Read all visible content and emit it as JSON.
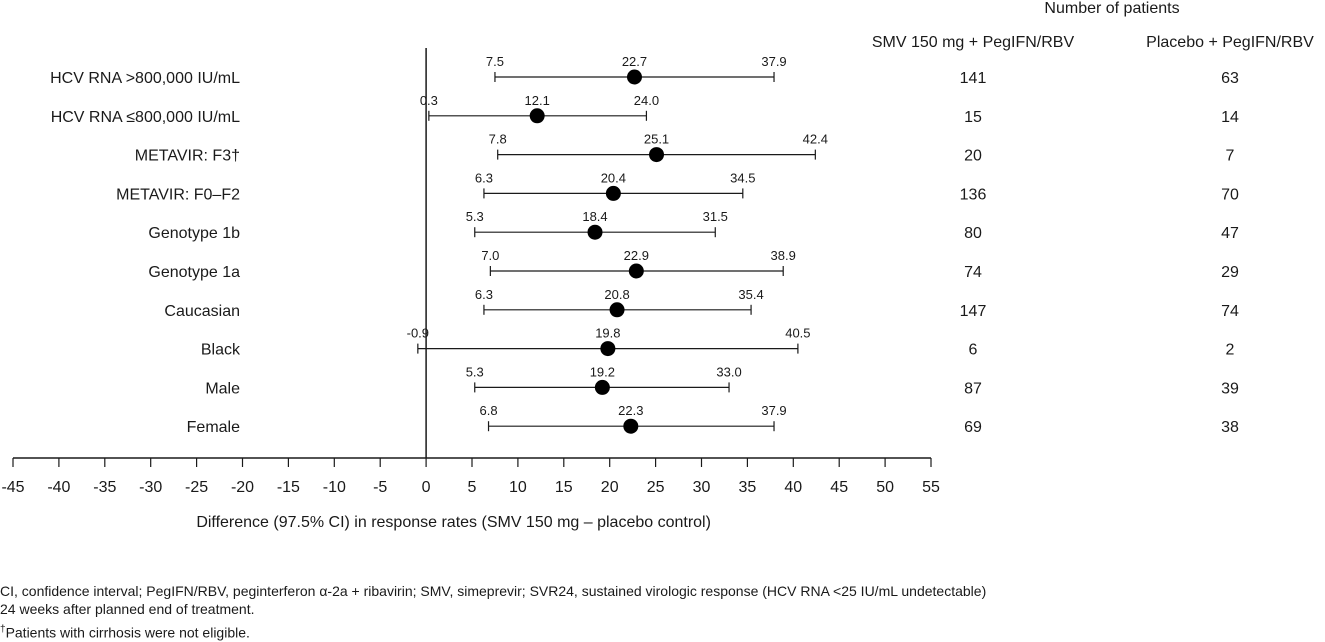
{
  "chart_data": {
    "type": "forest",
    "xlabel": "Difference (97.5% CI) in response rates (SMV 150 mg – placebo control)",
    "xlim": [
      -45,
      55
    ],
    "xticks": [
      "-45",
      "-40",
      "-35",
      "-30",
      "-25",
      "-20",
      "-15",
      "-10",
      "-5",
      "0",
      "5",
      "10",
      "15",
      "20",
      "25",
      "30",
      "35",
      "40",
      "45",
      "50",
      "55"
    ],
    "reference_line": 0,
    "columns_header": "Number of patients",
    "column_labels": [
      "SMV 150 mg + PegIFN/RBV",
      "Placebo + PegIFN/RBV"
    ],
    "rows": [
      {
        "label": "HCV RNA >800,000 IU/mL",
        "estimate": 22.7,
        "lower": 7.5,
        "upper": 37.9,
        "estimate_text": "22.7",
        "lower_text": "7.5",
        "upper_text": "37.9",
        "n_smv": "141",
        "n_placebo": "63"
      },
      {
        "label": "HCV RNA ≤800,000 IU/mL",
        "estimate": 12.1,
        "lower": 0.3,
        "upper": 24.0,
        "estimate_text": "12.1",
        "lower_text": "0.3",
        "upper_text": "24.0",
        "n_smv": "15",
        "n_placebo": "14"
      },
      {
        "label": "METAVIR: F3†",
        "estimate": 25.1,
        "lower": 7.8,
        "upper": 42.4,
        "estimate_text": "25.1",
        "lower_text": "7.8",
        "upper_text": "42.4",
        "n_smv": "20",
        "n_placebo": "7"
      },
      {
        "label": "METAVIR: F0–F2",
        "estimate": 20.4,
        "lower": 6.3,
        "upper": 34.5,
        "estimate_text": "20.4",
        "lower_text": "6.3",
        "upper_text": "34.5",
        "n_smv": "136",
        "n_placebo": "70"
      },
      {
        "label": "Genotype 1b",
        "estimate": 18.4,
        "lower": 5.3,
        "upper": 31.5,
        "estimate_text": "18.4",
        "lower_text": "5.3",
        "upper_text": "31.5",
        "n_smv": "80",
        "n_placebo": "47"
      },
      {
        "label": "Genotype 1a",
        "estimate": 22.9,
        "lower": 7.0,
        "upper": 38.9,
        "estimate_text": "22.9",
        "lower_text": "7.0",
        "upper_text": "38.9",
        "n_smv": "74",
        "n_placebo": "29"
      },
      {
        "label": "Caucasian",
        "estimate": 20.8,
        "lower": 6.3,
        "upper": 35.4,
        "estimate_text": "20.8",
        "lower_text": "6.3",
        "upper_text": "35.4",
        "n_smv": "147",
        "n_placebo": "74"
      },
      {
        "label": "Black",
        "estimate": 19.8,
        "lower": -0.9,
        "upper": 40.5,
        "estimate_text": "19.8",
        "lower_text": "-0.9",
        "upper_text": "40.5",
        "n_smv": "6",
        "n_placebo": "2"
      },
      {
        "label": "Male",
        "estimate": 19.2,
        "lower": 5.3,
        "upper": 33.0,
        "estimate_text": "19.2",
        "lower_text": "5.3",
        "upper_text": "33.0",
        "n_smv": "87",
        "n_placebo": "39"
      },
      {
        "label": "Female",
        "estimate": 22.3,
        "lower": 6.8,
        "upper": 37.9,
        "estimate_text": "22.3",
        "lower_text": "6.8",
        "upper_text": "37.9",
        "n_smv": "69",
        "n_placebo": "38"
      }
    ],
    "colors": {
      "marker": "#000000",
      "line": "#1a1a1a"
    }
  },
  "footnotes": {
    "line1": "CI, confidence interval; PegIFN/RBV, peginterferon α-2a + ribavirin; SMV, simeprevir; SVR24, sustained virologic response (HCV RNA <25 IU/mL undetectable)",
    "line2": "24 weeks after planned end of treatment.",
    "dagger": "†",
    "line3": "Patients with cirrhosis were not eligible."
  }
}
